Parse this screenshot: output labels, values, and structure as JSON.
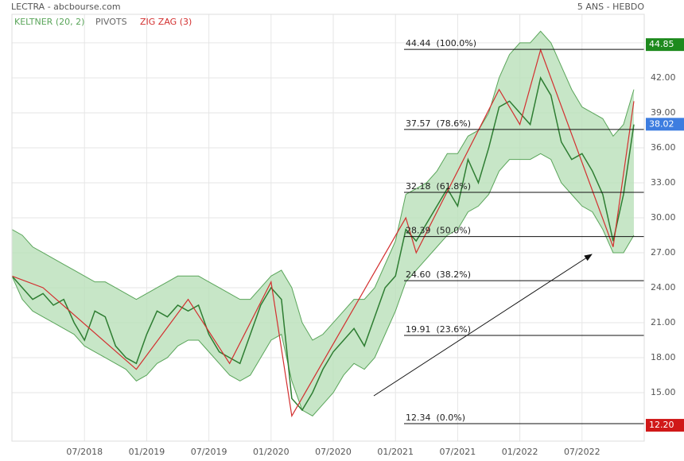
{
  "chart_data": {
    "type": "line",
    "title": "LECTRA - abcbourse.com",
    "subtitle": "5 ANS - HEBDO",
    "xlim": [
      "2017-12",
      "2023-01"
    ],
    "xticks": [
      {
        "value": "2018-07",
        "label": "07/2018"
      },
      {
        "value": "2019-01",
        "label": "01/2019"
      },
      {
        "value": "2019-07",
        "label": "07/2019"
      },
      {
        "value": "2020-01",
        "label": "01/2020"
      },
      {
        "value": "2020-07",
        "label": "07/2020"
      },
      {
        "value": "2021-01",
        "label": "01/2021"
      },
      {
        "value": "2021-07",
        "label": "07/2021"
      },
      {
        "value": "2022-01",
        "label": "01/2022"
      },
      {
        "value": "2022-07",
        "label": "07/2022"
      }
    ],
    "ylim": [
      10.84,
      47.45
    ],
    "yticks": [
      {
        "value": 15,
        "label": "15.00"
      },
      {
        "value": 18,
        "label": "18.00"
      },
      {
        "value": 21,
        "label": "21.00"
      },
      {
        "value": 24,
        "label": "24.00"
      },
      {
        "value": 27,
        "label": "27.00"
      },
      {
        "value": 30,
        "label": "30.00"
      },
      {
        "value": 33,
        "label": "33.00"
      },
      {
        "value": 36,
        "label": "36.00"
      },
      {
        "value": 39,
        "label": "39.00"
      },
      {
        "value": 42,
        "label": "42.00"
      },
      {
        "value": 45,
        "label": "45.00"
      }
    ],
    "grid": true,
    "x": [
      "2017-12",
      "2018-01",
      "2018-02",
      "2018-03",
      "2018-04",
      "2018-05",
      "2018-06",
      "2018-07",
      "2018-08",
      "2018-09",
      "2018-10",
      "2018-11",
      "2018-12",
      "2019-01",
      "2019-02",
      "2019-03",
      "2019-04",
      "2019-05",
      "2019-06",
      "2019-07",
      "2019-08",
      "2019-09",
      "2019-10",
      "2019-11",
      "2019-12",
      "2020-01",
      "2020-02",
      "2020-03",
      "2020-04",
      "2020-05",
      "2020-06",
      "2020-07",
      "2020-08",
      "2020-09",
      "2020-10",
      "2020-11",
      "2020-12",
      "2021-01",
      "2021-02",
      "2021-03",
      "2021-04",
      "2021-05",
      "2021-06",
      "2021-07",
      "2021-08",
      "2021-09",
      "2021-10",
      "2021-11",
      "2021-12",
      "2022-01",
      "2022-02",
      "2022-03",
      "2022-04",
      "2022-05",
      "2022-06",
      "2022-07",
      "2022-08",
      "2022-09",
      "2022-10",
      "2022-11",
      "2022-12"
    ],
    "price": {
      "color": "#2e7d32",
      "values": [
        25,
        24,
        23,
        23.5,
        22.5,
        23,
        21,
        19.5,
        22,
        21.5,
        19,
        18,
        17.5,
        20,
        22,
        21.5,
        22.5,
        22,
        22.5,
        20,
        18.5,
        18,
        17.5,
        20,
        22.5,
        24,
        23,
        14.5,
        13.5,
        15,
        17,
        18.5,
        19.5,
        20.5,
        19,
        21.5,
        24,
        25,
        29,
        28,
        29.5,
        31,
        32.5,
        31,
        35,
        33,
        36,
        39.5,
        40,
        39,
        38,
        42,
        40.5,
        36.5,
        35,
        35.5,
        34,
        32,
        28,
        32,
        38
      ]
    },
    "series": [
      {
        "name": "KELTNER (20, 2)",
        "color": "#5aa55a",
        "fill": "#b9e0b9",
        "upper": [
          29,
          28.5,
          27.5,
          27,
          26.5,
          26,
          25.5,
          25,
          24.5,
          24.5,
          24,
          23.5,
          23,
          23.5,
          24,
          24.5,
          25,
          25,
          25,
          24.5,
          24,
          23.5,
          23,
          23,
          24,
          25,
          25.5,
          24,
          21,
          19.5,
          20,
          21,
          22,
          23,
          23,
          24,
          26,
          28,
          32,
          32.5,
          33,
          34,
          35.5,
          35.5,
          37,
          37.5,
          39,
          42,
          44,
          45,
          45,
          46,
          45,
          43,
          41,
          39.5,
          39,
          38.5,
          37,
          38,
          41
        ],
        "lower": [
          25,
          23,
          22,
          21.5,
          21,
          20.5,
          20,
          19,
          18.5,
          18,
          17.5,
          17,
          16,
          16.5,
          17.5,
          18,
          19,
          19.5,
          19.5,
          18.5,
          17.5,
          16.5,
          16,
          16.5,
          18,
          19.5,
          20,
          16,
          13.5,
          13,
          14,
          15,
          16.5,
          17.5,
          17,
          18,
          20,
          22,
          24.5,
          25.5,
          26.5,
          27.5,
          28.5,
          29,
          30.5,
          31,
          32,
          34,
          35,
          35,
          35,
          35.5,
          35,
          33,
          32,
          31,
          30.5,
          29,
          27,
          27,
          28.5
        ]
      },
      {
        "name": "PIVOTS",
        "color": "#777",
        "levels": [
          {
            "value": 44.44,
            "label": "44.44  (100.0%)"
          },
          {
            "value": 37.57,
            "label": "37.57  (78.6%)"
          },
          {
            "value": 32.18,
            "label": "32.18  (61.8%)"
          },
          {
            "value": 28.39,
            "label": "28.39  (50.0%)"
          },
          {
            "value": 24.6,
            "label": "24.60  (38.2%)"
          },
          {
            "value": 19.91,
            "label": "19.91  (23.6%)"
          },
          {
            "value": 12.34,
            "label": "12.34  (0.0%)"
          }
        ]
      },
      {
        "name": "ZIG ZAG (3)",
        "color": "#d32f2f",
        "x": [
          "2017-12",
          "2018-03",
          "2018-12",
          "2019-05",
          "2019-09",
          "2020-01",
          "2020-03",
          "2021-02",
          "2021-03",
          "2021-11",
          "2022-01",
          "2022-03",
          "2022-10",
          "2022-12"
        ],
        "values": [
          25,
          24,
          17,
          23,
          17.5,
          24.5,
          13,
          30,
          27,
          41,
          38,
          44.4,
          27.5,
          40
        ]
      }
    ],
    "badges": [
      {
        "value": 44.85,
        "label": "44.85",
        "color": "#1e8a1e"
      },
      {
        "value": 38.02,
        "label": "38.02",
        "color": "#3d7de0"
      },
      {
        "value": 12.2,
        "label": "12.20",
        "color": "#d01818"
      }
    ]
  }
}
